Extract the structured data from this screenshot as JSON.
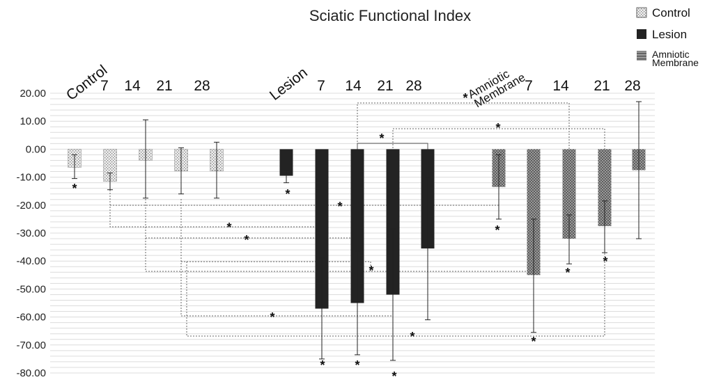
{
  "chart_data": {
    "type": "bar",
    "title": "Sciatic Functional Index",
    "ylim": [
      -80,
      20
    ],
    "yticks": [
      "20.00",
      "10.00",
      "0.00",
      "-10.00",
      "-20.00",
      "-30.00",
      "-40.00",
      "-50.00",
      "-60.00",
      "-70.00",
      "-80.00"
    ],
    "grid": true,
    "legend_position": "top-right",
    "legend": [
      {
        "label": "Control",
        "pattern": "dots"
      },
      {
        "label": "Lesion",
        "pattern": "solid"
      },
      {
        "label_lines": [
          "Amniotic",
          "Membrane"
        ],
        "pattern": "checker"
      }
    ],
    "group_labels": {
      "control": "Control",
      "lesion": "Lesion",
      "amniotic": [
        "Amniotic",
        "Membrane"
      ]
    },
    "day_labels": [
      "7",
      "14",
      "21",
      "28"
    ],
    "series": [
      {
        "name": "Control",
        "pattern": "dots",
        "values": [
          -6.5,
          -11.5,
          -4,
          -7.8,
          -7.8
        ],
        "err_up": [
          -2,
          -8.5,
          10.5,
          0.5,
          2.5
        ],
        "err_down": [
          -10.5,
          -14.5,
          -17.5,
          -16,
          -17.5
        ]
      },
      {
        "name": "Lesion",
        "pattern": "solid",
        "values": [
          -9.5,
          -57,
          -55,
          -52,
          -35.5
        ],
        "err_up": [
          -7.5,
          -39,
          -36.5,
          -28.5,
          -10
        ],
        "err_down": [
          -12,
          -75,
          -73.5,
          -75.5,
          -61
        ]
      },
      {
        "name": "Amniotic Membrane",
        "pattern": "checker",
        "values": [
          -13.5,
          -45,
          -32,
          -27.5,
          -7.5
        ],
        "err_up": [
          -2,
          -25,
          -23.5,
          -18.5,
          17
        ],
        "err_down": [
          -25,
          -65.5,
          -41,
          -37,
          -32
        ]
      }
    ],
    "significance_mark": "*"
  }
}
